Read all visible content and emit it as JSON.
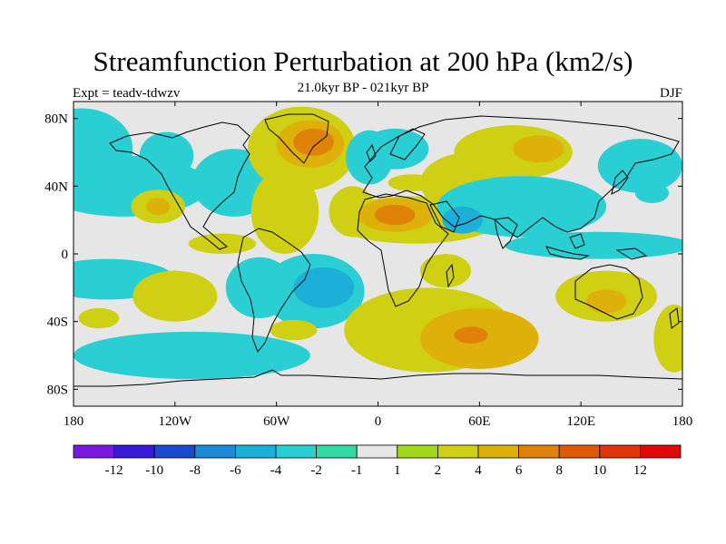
{
  "header": {
    "title": "Streamfunction Perturbation at 200 hPa (km2/s)",
    "subtitle": "21.0kyr BP - 021kyr BP",
    "experiment": "Expt = teadv-tdwzv",
    "season": "DJF"
  },
  "axes": {
    "lat_ticks": [
      "80N",
      "40N",
      "0",
      "40S",
      "80S"
    ],
    "lat_values": [
      80,
      40,
      0,
      -40,
      -80
    ],
    "lon_ticks": [
      "180",
      "120W",
      "60W",
      "0",
      "60E",
      "120E",
      "180"
    ],
    "lon_values": [
      -180,
      -120,
      -60,
      0,
      60,
      120,
      180
    ],
    "lat_range": [
      -90,
      90
    ],
    "lon_range": [
      -180,
      180
    ]
  },
  "colorbar": {
    "colors": [
      "#7a18e0",
      "#3a18d8",
      "#1a4ad0",
      "#1a8ad8",
      "#1cb0d8",
      "#2acfd4",
      "#34d8a4",
      "#e6e6e6",
      "#a0d81c",
      "#cfcf14",
      "#ddb00a",
      "#e08208",
      "#e05a06",
      "#e0340a",
      "#e00808"
    ],
    "labels": [
      "-12",
      "-10",
      "-8",
      "-6",
      "-4",
      "-2",
      "-1",
      "1",
      "2",
      "4",
      "6",
      "8",
      "10",
      "12"
    ]
  },
  "anomaly_regions": [
    {
      "lon": -175,
      "lat": 62,
      "rlon": 30,
      "rlat": 24,
      "level": "-2"
    },
    {
      "lon": -125,
      "lat": 58,
      "rlon": 16,
      "rlat": 14,
      "level": "-2"
    },
    {
      "lon": -150,
      "lat": 40,
      "rlon": 50,
      "rlat": 18,
      "level": "-2"
    },
    {
      "lon": -85,
      "lat": 42,
      "rlon": 25,
      "rlat": 20,
      "level": "-2"
    },
    {
      "lon": -130,
      "lat": 28,
      "rlon": 16,
      "rlat": 10,
      "level": "2"
    },
    {
      "lon": -130,
      "lat": 28,
      "rlon": 7,
      "rlat": 5,
      "level": "4"
    },
    {
      "lon": -92,
      "lat": 6,
      "rlon": 20,
      "rlat": 6,
      "level": "2"
    },
    {
      "lon": -45,
      "lat": 62,
      "rlon": 32,
      "rlat": 25,
      "level": "2"
    },
    {
      "lon": -40,
      "lat": 65,
      "rlon": 20,
      "rlat": 14,
      "level": "4"
    },
    {
      "lon": -38,
      "lat": 66,
      "rlon": 12,
      "rlat": 8,
      "level": "6"
    },
    {
      "lon": -55,
      "lat": 25,
      "rlon": 20,
      "rlat": 25,
      "level": "2"
    },
    {
      "lon": -15,
      "lat": 25,
      "rlon": 14,
      "rlat": 15,
      "level": "2"
    },
    {
      "lon": -5,
      "lat": 57,
      "rlon": 14,
      "rlat": 16,
      "level": "-2"
    },
    {
      "lon": 10,
      "lat": 62,
      "rlon": 20,
      "rlat": 12,
      "level": "-2"
    },
    {
      "lon": 22,
      "lat": 20,
      "rlon": 50,
      "rlat": 14,
      "level": "2"
    },
    {
      "lon": 10,
      "lat": 23,
      "rlon": 22,
      "rlat": 10,
      "level": "4"
    },
    {
      "lon": 10,
      "lat": 23,
      "rlon": 12,
      "rlat": 6,
      "level": "6"
    },
    {
      "lon": 55,
      "lat": 42,
      "rlon": 30,
      "rlat": 18,
      "level": "2"
    },
    {
      "lon": 20,
      "lat": 42,
      "rlon": 14,
      "rlat": 5,
      "level": "2"
    },
    {
      "lon": 80,
      "lat": 60,
      "rlon": 35,
      "rlat": 16,
      "level": "2"
    },
    {
      "lon": 95,
      "lat": 62,
      "rlon": 15,
      "rlat": 8,
      "level": "4"
    },
    {
      "lon": 85,
      "lat": 28,
      "rlon": 50,
      "rlat": 18,
      "level": "-2"
    },
    {
      "lon": 50,
      "lat": 20,
      "rlon": 12,
      "rlat": 8,
      "level": "-4"
    },
    {
      "lon": 155,
      "lat": 52,
      "rlon": 25,
      "rlat": 16,
      "level": "-2"
    },
    {
      "lon": 162,
      "lat": 36,
      "rlon": 10,
      "rlat": 6,
      "level": "-2"
    },
    {
      "lon": 130,
      "lat": 5,
      "rlon": 55,
      "rlat": 8,
      "level": "-2"
    },
    {
      "lon": -160,
      "lat": -15,
      "rlon": 40,
      "rlat": 12,
      "level": "-2"
    },
    {
      "lon": -70,
      "lat": -20,
      "rlon": 20,
      "rlat": 18,
      "level": "-2"
    },
    {
      "lon": -38,
      "lat": -22,
      "rlon": 30,
      "rlat": 22,
      "level": "-2"
    },
    {
      "lon": -32,
      "lat": -20,
      "rlon": 18,
      "rlat": 12,
      "level": "-4"
    },
    {
      "lon": -120,
      "lat": -25,
      "rlon": 25,
      "rlat": 15,
      "level": "2"
    },
    {
      "lon": -110,
      "lat": -60,
      "rlon": 70,
      "rlat": 14,
      "level": "-2"
    },
    {
      "lon": -165,
      "lat": -38,
      "rlon": 12,
      "rlat": 6,
      "level": "2"
    },
    {
      "lon": -50,
      "lat": -45,
      "rlon": 14,
      "rlat": 6,
      "level": "2"
    },
    {
      "lon": 30,
      "lat": -45,
      "rlon": 50,
      "rlat": 25,
      "level": "2"
    },
    {
      "lon": 60,
      "lat": -50,
      "rlon": 35,
      "rlat": 18,
      "level": "4"
    },
    {
      "lon": 55,
      "lat": -48,
      "rlon": 10,
      "rlat": 5,
      "level": "6"
    },
    {
      "lon": 40,
      "lat": -10,
      "rlon": 15,
      "rlat": 10,
      "level": "2"
    },
    {
      "lon": 135,
      "lat": -25,
      "rlon": 30,
      "rlat": 15,
      "level": "2"
    },
    {
      "lon": 135,
      "lat": -28,
      "rlon": 12,
      "rlat": 7,
      "level": "4"
    },
    {
      "lon": 175,
      "lat": -50,
      "rlon": 12,
      "rlat": 20,
      "level": "2"
    }
  ]
}
